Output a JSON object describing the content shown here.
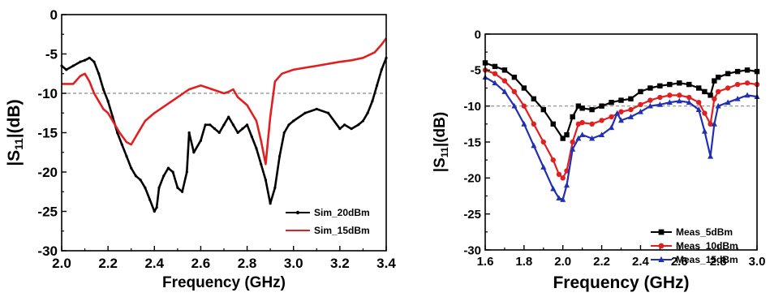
{
  "chart_data": [
    {
      "type": "line",
      "xlabel": "Frequency (GHz)",
      "ylabel_main": "|S",
      "ylabel_sub": "11",
      "ylabel_tail": "|(dB)",
      "xlim": [
        2.0,
        3.4
      ],
      "ylim": [
        -30,
        0
      ],
      "xticks": [
        "2.0",
        "2.2",
        "2.4",
        "2.6",
        "2.8",
        "3.0",
        "3.2",
        "3.4"
      ],
      "yticks": [
        "0",
        "-5",
        "-10",
        "-15",
        "-20",
        "-25",
        "-30"
      ],
      "reference_line": -10,
      "legend_position": "bottom-right",
      "series": [
        {
          "name": "Sim_20dBm",
          "color": "#000000",
          "marker": "dot",
          "x": [
            2.0,
            2.02,
            2.05,
            2.08,
            2.1,
            2.12,
            2.14,
            2.16,
            2.18,
            2.2,
            2.22,
            2.24,
            2.26,
            2.28,
            2.3,
            2.32,
            2.34,
            2.36,
            2.38,
            2.4,
            2.41,
            2.42,
            2.44,
            2.46,
            2.48,
            2.5,
            2.52,
            2.54,
            2.55,
            2.57,
            2.6,
            2.62,
            2.64,
            2.66,
            2.68,
            2.7,
            2.72,
            2.74,
            2.76,
            2.78,
            2.8,
            2.82,
            2.84,
            2.86,
            2.88,
            2.9,
            2.92,
            2.94,
            2.96,
            2.98,
            3.0,
            3.05,
            3.1,
            3.15,
            3.2,
            3.22,
            3.25,
            3.28,
            3.3,
            3.32,
            3.34,
            3.36,
            3.38,
            3.4
          ],
          "y": [
            -6.5,
            -7.0,
            -6.5,
            -6.0,
            -5.8,
            -5.5,
            -6.0,
            -7.5,
            -9.5,
            -11.0,
            -13.0,
            -15.0,
            -16.5,
            -18.0,
            -19.5,
            -20.5,
            -21.0,
            -22.0,
            -23.5,
            -25.0,
            -24.5,
            -22.0,
            -20.5,
            -19.5,
            -20.0,
            -22.0,
            -22.5,
            -20.0,
            -15.0,
            -17.5,
            -16.0,
            -14.0,
            -14.0,
            -14.5,
            -15.0,
            -14.0,
            -13.0,
            -14.0,
            -15.0,
            -14.5,
            -14.0,
            -15.5,
            -17.0,
            -19.0,
            -21.0,
            -24.0,
            -22.0,
            -18.0,
            -15.0,
            -14.0,
            -13.5,
            -12.5,
            -12.0,
            -12.5,
            -14.5,
            -14.0,
            -14.5,
            -14.0,
            -13.5,
            -12.5,
            -11.0,
            -9.0,
            -7.0,
            -5.5
          ]
        },
        {
          "name": "Sim_15dBm",
          "color": "#e02020",
          "marker": "none",
          "x": [
            2.0,
            2.02,
            2.05,
            2.08,
            2.1,
            2.12,
            2.14,
            2.16,
            2.18,
            2.2,
            2.22,
            2.25,
            2.28,
            2.3,
            2.32,
            2.34,
            2.36,
            2.4,
            2.45,
            2.5,
            2.55,
            2.6,
            2.65,
            2.7,
            2.72,
            2.74,
            2.76,
            2.8,
            2.84,
            2.86,
            2.88,
            2.9,
            2.92,
            2.95,
            3.0,
            3.1,
            3.2,
            3.25,
            3.3,
            3.35,
            3.38,
            3.4
          ],
          "y": [
            -8.8,
            -8.8,
            -8.8,
            -7.8,
            -7.5,
            -8.5,
            -10.0,
            -11.0,
            -12.0,
            -12.5,
            -13.5,
            -15.0,
            -16.2,
            -16.5,
            -15.5,
            -14.5,
            -13.5,
            -12.5,
            -11.5,
            -10.5,
            -9.5,
            -9.0,
            -9.5,
            -10.0,
            -9.8,
            -9.5,
            -10.5,
            -11.5,
            -13.5,
            -16.0,
            -19.0,
            -13.0,
            -8.5,
            -7.5,
            -7.0,
            -6.5,
            -6.0,
            -5.8,
            -5.5,
            -4.8,
            -3.8,
            -3.0
          ]
        }
      ]
    },
    {
      "type": "line",
      "xlabel": "Frequency (GHz)",
      "ylabel_main": "|S",
      "ylabel_sub": "11",
      "ylabel_tail": "|(dB)",
      "xlim": [
        1.6,
        3.0
      ],
      "ylim": [
        -30,
        0
      ],
      "xticks": [
        "1.6",
        "1.8",
        "2.0",
        "2.2",
        "2.4",
        "2.6",
        "2.8",
        "3.0"
      ],
      "yticks": [
        "0",
        "-5",
        "-10",
        "-15",
        "-20",
        "-25",
        "-30"
      ],
      "reference_line": -10,
      "legend_position": "bottom-right",
      "series": [
        {
          "name": "Meas_5dBm",
          "color": "#000000",
          "marker": "square",
          "x": [
            1.6,
            1.65,
            1.7,
            1.75,
            1.8,
            1.85,
            1.9,
            1.95,
            2.0,
            2.02,
            2.05,
            2.08,
            2.1,
            2.15,
            2.2,
            2.25,
            2.3,
            2.35,
            2.4,
            2.45,
            2.5,
            2.55,
            2.6,
            2.65,
            2.7,
            2.73,
            2.76,
            2.78,
            2.8,
            2.85,
            2.9,
            2.95,
            3.0
          ],
          "y": [
            -4.0,
            -4.5,
            -5.0,
            -6.0,
            -7.5,
            -9.0,
            -10.5,
            -12.5,
            -14.5,
            -14.0,
            -11.5,
            -10.0,
            -10.3,
            -10.5,
            -10.0,
            -9.5,
            -9.2,
            -9.0,
            -8.0,
            -7.5,
            -7.2,
            -7.0,
            -6.8,
            -7.0,
            -7.5,
            -8.0,
            -8.5,
            -6.5,
            -6.0,
            -5.5,
            -5.2,
            -5.0,
            -5.2
          ]
        },
        {
          "name": "Meas_10dBm",
          "color": "#e02020",
          "marker": "circle",
          "x": [
            1.6,
            1.65,
            1.7,
            1.75,
            1.8,
            1.85,
            1.9,
            1.95,
            1.98,
            2.0,
            2.02,
            2.05,
            2.08,
            2.1,
            2.15,
            2.2,
            2.25,
            2.3,
            2.35,
            2.4,
            2.45,
            2.5,
            2.55,
            2.6,
            2.65,
            2.7,
            2.73,
            2.76,
            2.78,
            2.8,
            2.85,
            2.9,
            2.95,
            3.0
          ],
          "y": [
            -5.0,
            -5.5,
            -6.5,
            -8.0,
            -10.0,
            -12.5,
            -15.0,
            -17.5,
            -19.5,
            -20.0,
            -19.0,
            -15.0,
            -12.5,
            -12.3,
            -12.5,
            -12.0,
            -11.5,
            -10.8,
            -10.5,
            -9.8,
            -9.2,
            -8.8,
            -8.5,
            -8.5,
            -8.8,
            -9.5,
            -11.0,
            -12.5,
            -9.0,
            -8.0,
            -7.5,
            -7.0,
            -6.8,
            -7.0
          ]
        },
        {
          "name": "Meas_15dBm",
          "color": "#2030b0",
          "marker": "triangle",
          "x": [
            1.6,
            1.65,
            1.7,
            1.75,
            1.8,
            1.85,
            1.9,
            1.95,
            1.98,
            2.0,
            2.02,
            2.05,
            2.08,
            2.1,
            2.15,
            2.2,
            2.25,
            2.28,
            2.3,
            2.35,
            2.4,
            2.45,
            2.5,
            2.55,
            2.6,
            2.65,
            2.7,
            2.73,
            2.76,
            2.78,
            2.8,
            2.85,
            2.9,
            2.95,
            3.0
          ],
          "y": [
            -6.0,
            -6.8,
            -8.0,
            -10.0,
            -12.5,
            -15.5,
            -18.5,
            -21.5,
            -22.8,
            -23.0,
            -21.0,
            -16.0,
            -14.5,
            -14.0,
            -14.5,
            -14.0,
            -13.0,
            -11.0,
            -12.0,
            -11.5,
            -10.8,
            -10.0,
            -9.8,
            -9.5,
            -9.3,
            -9.5,
            -10.5,
            -13.5,
            -17.0,
            -12.5,
            -10.0,
            -9.5,
            -9.0,
            -8.5,
            -8.7
          ]
        }
      ]
    }
  ]
}
